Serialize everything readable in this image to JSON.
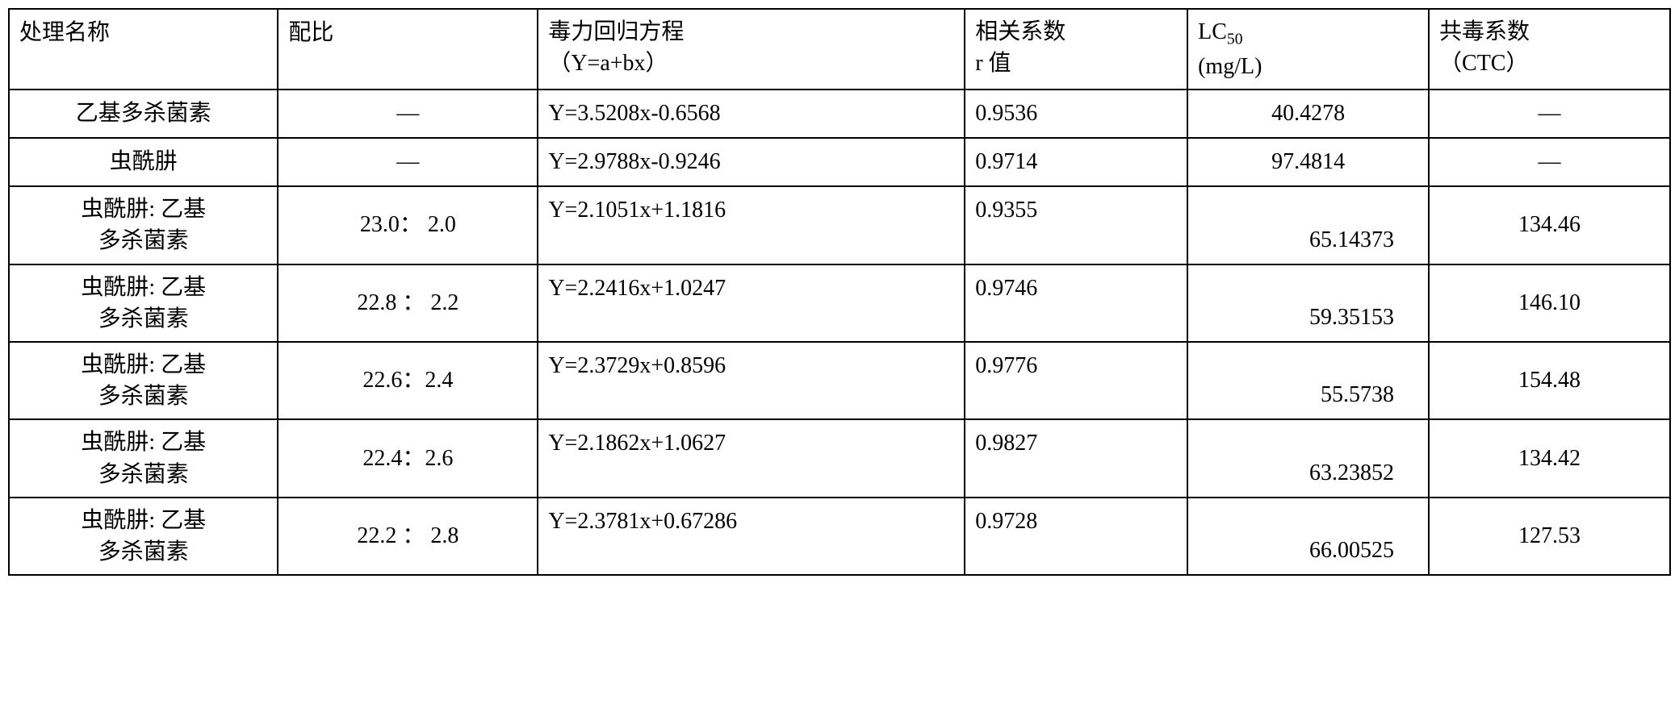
{
  "table": {
    "border_color": "#000000",
    "background_color": "#ffffff",
    "text_color": "#000000",
    "font_family": "SimSun",
    "font_size": 28,
    "headers": {
      "treatment": "处理名称",
      "ratio": "配比",
      "equation_main": "毒力回归方程",
      "equation_sub": "（Y=a+bx）",
      "correlation_main": "相关系数",
      "correlation_sub": " r 值",
      "lc50_main": "LC",
      "lc50_sub": "50",
      "lc50_unit": "(mg/L)",
      "ctc_main": "共毒系数",
      "ctc_sub": "（CTC）"
    },
    "rows": [
      {
        "treatment_line1": "乙基多杀菌素",
        "treatment_line2": "",
        "ratio": "—",
        "equation": "Y=3.5208x-0.6568",
        "r": "0.9536",
        "lc50": "40.4278",
        "lc50_centered": true,
        "ctc": "—",
        "single_line": true
      },
      {
        "treatment_line1": "虫酰肼",
        "treatment_line2": "",
        "ratio": "—",
        "equation": "Y=2.9788x-0.9246",
        "r": "0.9714",
        "lc50": "97.4814",
        "lc50_centered": true,
        "ctc": "—",
        "single_line": true
      },
      {
        "treatment_line1": "虫酰肼: 乙基",
        "treatment_line2": "多杀菌素",
        "ratio": "23.0：  2.0",
        "equation": "Y=2.1051x+1.1816",
        "r": "0.9355",
        "lc50": "65.14373",
        "ctc": "134.46",
        "single_line": false
      },
      {
        "treatment_line1": "虫酰肼: 乙基",
        "treatment_line2": "多杀菌素",
        "ratio": "22.8 ：  2.2",
        "equation": "Y=2.2416x+1.0247",
        "r": "0.9746",
        "lc50": "59.35153",
        "ctc": "146.10",
        "single_line": false
      },
      {
        "treatment_line1": "虫酰肼: 乙基",
        "treatment_line2": "多杀菌素",
        "ratio": "22.6：2.4",
        "equation": "Y=2.3729x+0.8596",
        "r": "0.9776",
        "lc50": "55.5738",
        "ctc": "154.48",
        "single_line": false
      },
      {
        "treatment_line1": "虫酰肼: 乙基",
        "treatment_line2": "多杀菌素",
        "ratio": "22.4：2.6",
        "equation": "Y=2.1862x+1.0627",
        "r": "0.9827",
        "lc50": "63.23852",
        "ctc": "134.42",
        "single_line": false
      },
      {
        "treatment_line1": "虫酰肼: 乙基",
        "treatment_line2": "多杀菌素",
        "ratio": "22.2 ：  2.8",
        "equation": "Y=2.3781x+0.67286",
        "r": "0.9728",
        "lc50": "66.00525",
        "ctc": "127.53",
        "single_line": false
      }
    ]
  }
}
